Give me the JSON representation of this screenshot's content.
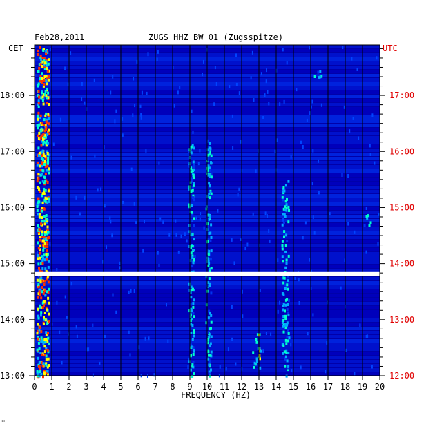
{
  "header": {
    "date": "Feb28,2011",
    "station": "ZUGS HHZ BW 01 (Zugsspitze)",
    "left_zone": "CET",
    "right_zone": "UTC",
    "corner_mark": "*"
  },
  "colors": {
    "left_axis": "#000000",
    "right_axis": "#e00000",
    "background": "#0000aa",
    "gap": "#ffffff"
  },
  "chart_data": {
    "type": "heatmap",
    "title": "ZUGS HHZ BW 01 (Zugsspitze)",
    "date": "Feb28,2011",
    "xlabel": "FREQUENCY (HZ)",
    "xlim": [
      0,
      20
    ],
    "x_ticks": [
      "0",
      "1",
      "2",
      "3",
      "4",
      "5",
      "6",
      "7",
      "8",
      "9",
      "10",
      "11",
      "12",
      "13",
      "14",
      "15",
      "16",
      "17",
      "18",
      "19",
      "20"
    ],
    "y_left": {
      "label": "CET",
      "range_hours": [
        13.0,
        18.9
      ],
      "ticks": [
        {
          "h": 13,
          "label": "13:00"
        },
        {
          "h": 14,
          "label": "14:00"
        },
        {
          "h": 15,
          "label": "15:00"
        },
        {
          "h": 16,
          "label": "16:00"
        },
        {
          "h": 17,
          "label": "17:00"
        },
        {
          "h": 18,
          "label": "18:00"
        }
      ]
    },
    "y_right": {
      "label": "UTC",
      "ticks": [
        {
          "h": 13,
          "label": "12:00"
        },
        {
          "h": 14,
          "label": "13:00"
        },
        {
          "h": 15,
          "label": "14:00"
        },
        {
          "h": 16,
          "label": "15:00"
        },
        {
          "h": 17,
          "label": "16:00"
        },
        {
          "h": 18,
          "label": "17:00"
        }
      ]
    },
    "data_gap_cet": [
      14.78,
      14.85
    ],
    "color_scale": [
      "#0000aa",
      "#0033ee",
      "#00aaff",
      "#00ffcc",
      "#ffff00",
      "#ff3300"
    ],
    "features": [
      {
        "name": "low-frequency noise",
        "freq_hz": [
          0.1,
          0.8
        ],
        "time_cet": [
          13.0,
          18.9
        ],
        "level": 5
      },
      {
        "name": "9 Hz line",
        "freq_hz": [
          8.9,
          9.2
        ],
        "time_cet": [
          13.0,
          17.2
        ],
        "level": 3
      },
      {
        "name": "10 Hz line",
        "freq_hz": [
          9.9,
          10.2
        ],
        "time_cet": [
          13.0,
          17.2
        ],
        "level": 3
      },
      {
        "name": "12.8 Hz burst",
        "freq_hz": [
          12.6,
          13.1
        ],
        "time_cet": [
          13.1,
          13.8
        ],
        "level": 4
      },
      {
        "name": "14.5 Hz line",
        "freq_hz": [
          14.3,
          14.7
        ],
        "time_cet": [
          13.0,
          16.5
        ],
        "level": 3
      },
      {
        "name": "16 Hz patch",
        "freq_hz": [
          15.8,
          16.6
        ],
        "time_cet": [
          18.3,
          18.5
        ],
        "level": 3
      },
      {
        "name": "19.3 Hz patch",
        "freq_hz": [
          19.0,
          19.6
        ],
        "time_cet": [
          15.7,
          15.9
        ],
        "level": 3
      }
    ]
  }
}
